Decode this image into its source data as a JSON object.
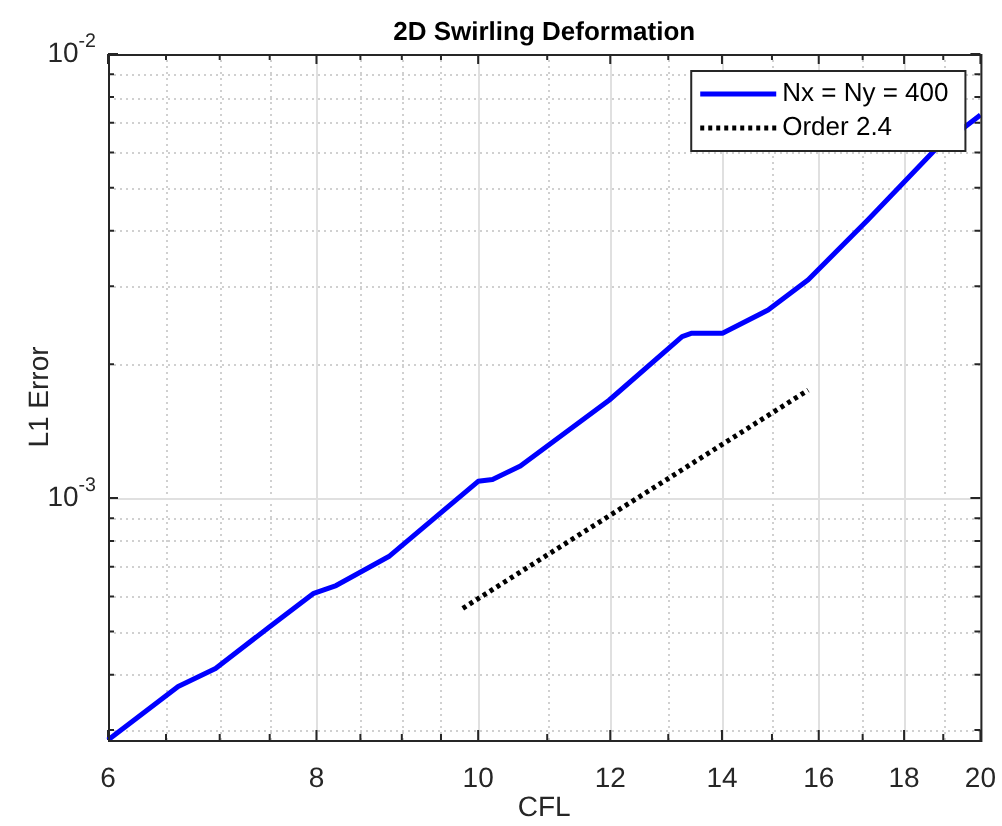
{
  "chart_data": {
    "type": "line",
    "title": "2D Swirling Deformation",
    "xlabel": "CFL",
    "ylabel": "L1 Error",
    "log": "xy",
    "grid": true,
    "legend": "top right",
    "xlim": [
      6,
      20
    ],
    "ylim": [
      0.000285,
      0.01
    ],
    "xticks": [
      6,
      {
        "value": 6.5,
        "label": null
      },
      {
        "value": 7,
        "label": null
      },
      {
        "value": 7.5,
        "label": null
      },
      8,
      {
        "value": 8.5,
        "label": null
      },
      {
        "value": 9,
        "label": null
      },
      {
        "value": 9.5,
        "label": null
      },
      10,
      {
        "value": 11,
        "label": null
      },
      12,
      {
        "value": 13,
        "label": null
      },
      14,
      {
        "value": 15,
        "label": null
      },
      16,
      {
        "value": 17,
        "label": null
      },
      18,
      {
        "value": 19,
        "label": null
      },
      20
    ],
    "yticks": [
      {
        "value": 0.0003,
        "label": null
      },
      {
        "value": 0.0004,
        "label": null
      },
      {
        "value": 0.0005,
        "label": null
      },
      {
        "value": 0.0006,
        "label": null
      },
      {
        "value": 0.0007,
        "label": null
      },
      {
        "value": 0.0008,
        "label": null
      },
      {
        "value": 0.0009,
        "label": null
      },
      {
        "value": 0.001,
        "label": "10$^{-3}$"
      },
      {
        "value": 0.002,
        "label": null
      },
      {
        "value": 0.003,
        "label": null
      },
      {
        "value": 0.004,
        "label": null
      },
      {
        "value": 0.005,
        "label": null
      },
      {
        "value": 0.006,
        "label": null
      },
      {
        "value": 0.007,
        "label": null
      },
      {
        "value": 0.008,
        "label": null
      },
      {
        "value": 0.009,
        "label": null
      },
      {
        "value": 0.01,
        "label": "10$^{-2}$"
      }
    ],
    "series": [
      {
        "name": "Nx = Ny = 400",
        "color": "#0000ff",
        "line_style": "solid",
        "x": [
          6,
          6.61,
          6.96,
          7.5,
          7.97,
          8.22,
          8.84,
          10.0,
          10.2,
          10.6,
          11.98,
          13.25,
          13.43,
          14.01,
          14.92,
          15.77,
          17.12,
          18.78,
          20
        ],
        "values": [
          0.000285,
          0.000376,
          0.000413,
          0.000513,
          0.00061,
          0.000635,
          0.000738,
          0.00109,
          0.0011,
          0.00118,
          0.00166,
          0.00231,
          0.00235,
          0.00235,
          0.00265,
          0.0031,
          0.00423,
          0.00608,
          0.00729
        ]
      },
      {
        "name": "Order 2.4",
        "color": "#000000",
        "line_style": "dotted",
        "x": [
          9.79,
          15.77
        ],
        "values": [
          0.000564,
          0.00175
        ]
      }
    ]
  }
}
